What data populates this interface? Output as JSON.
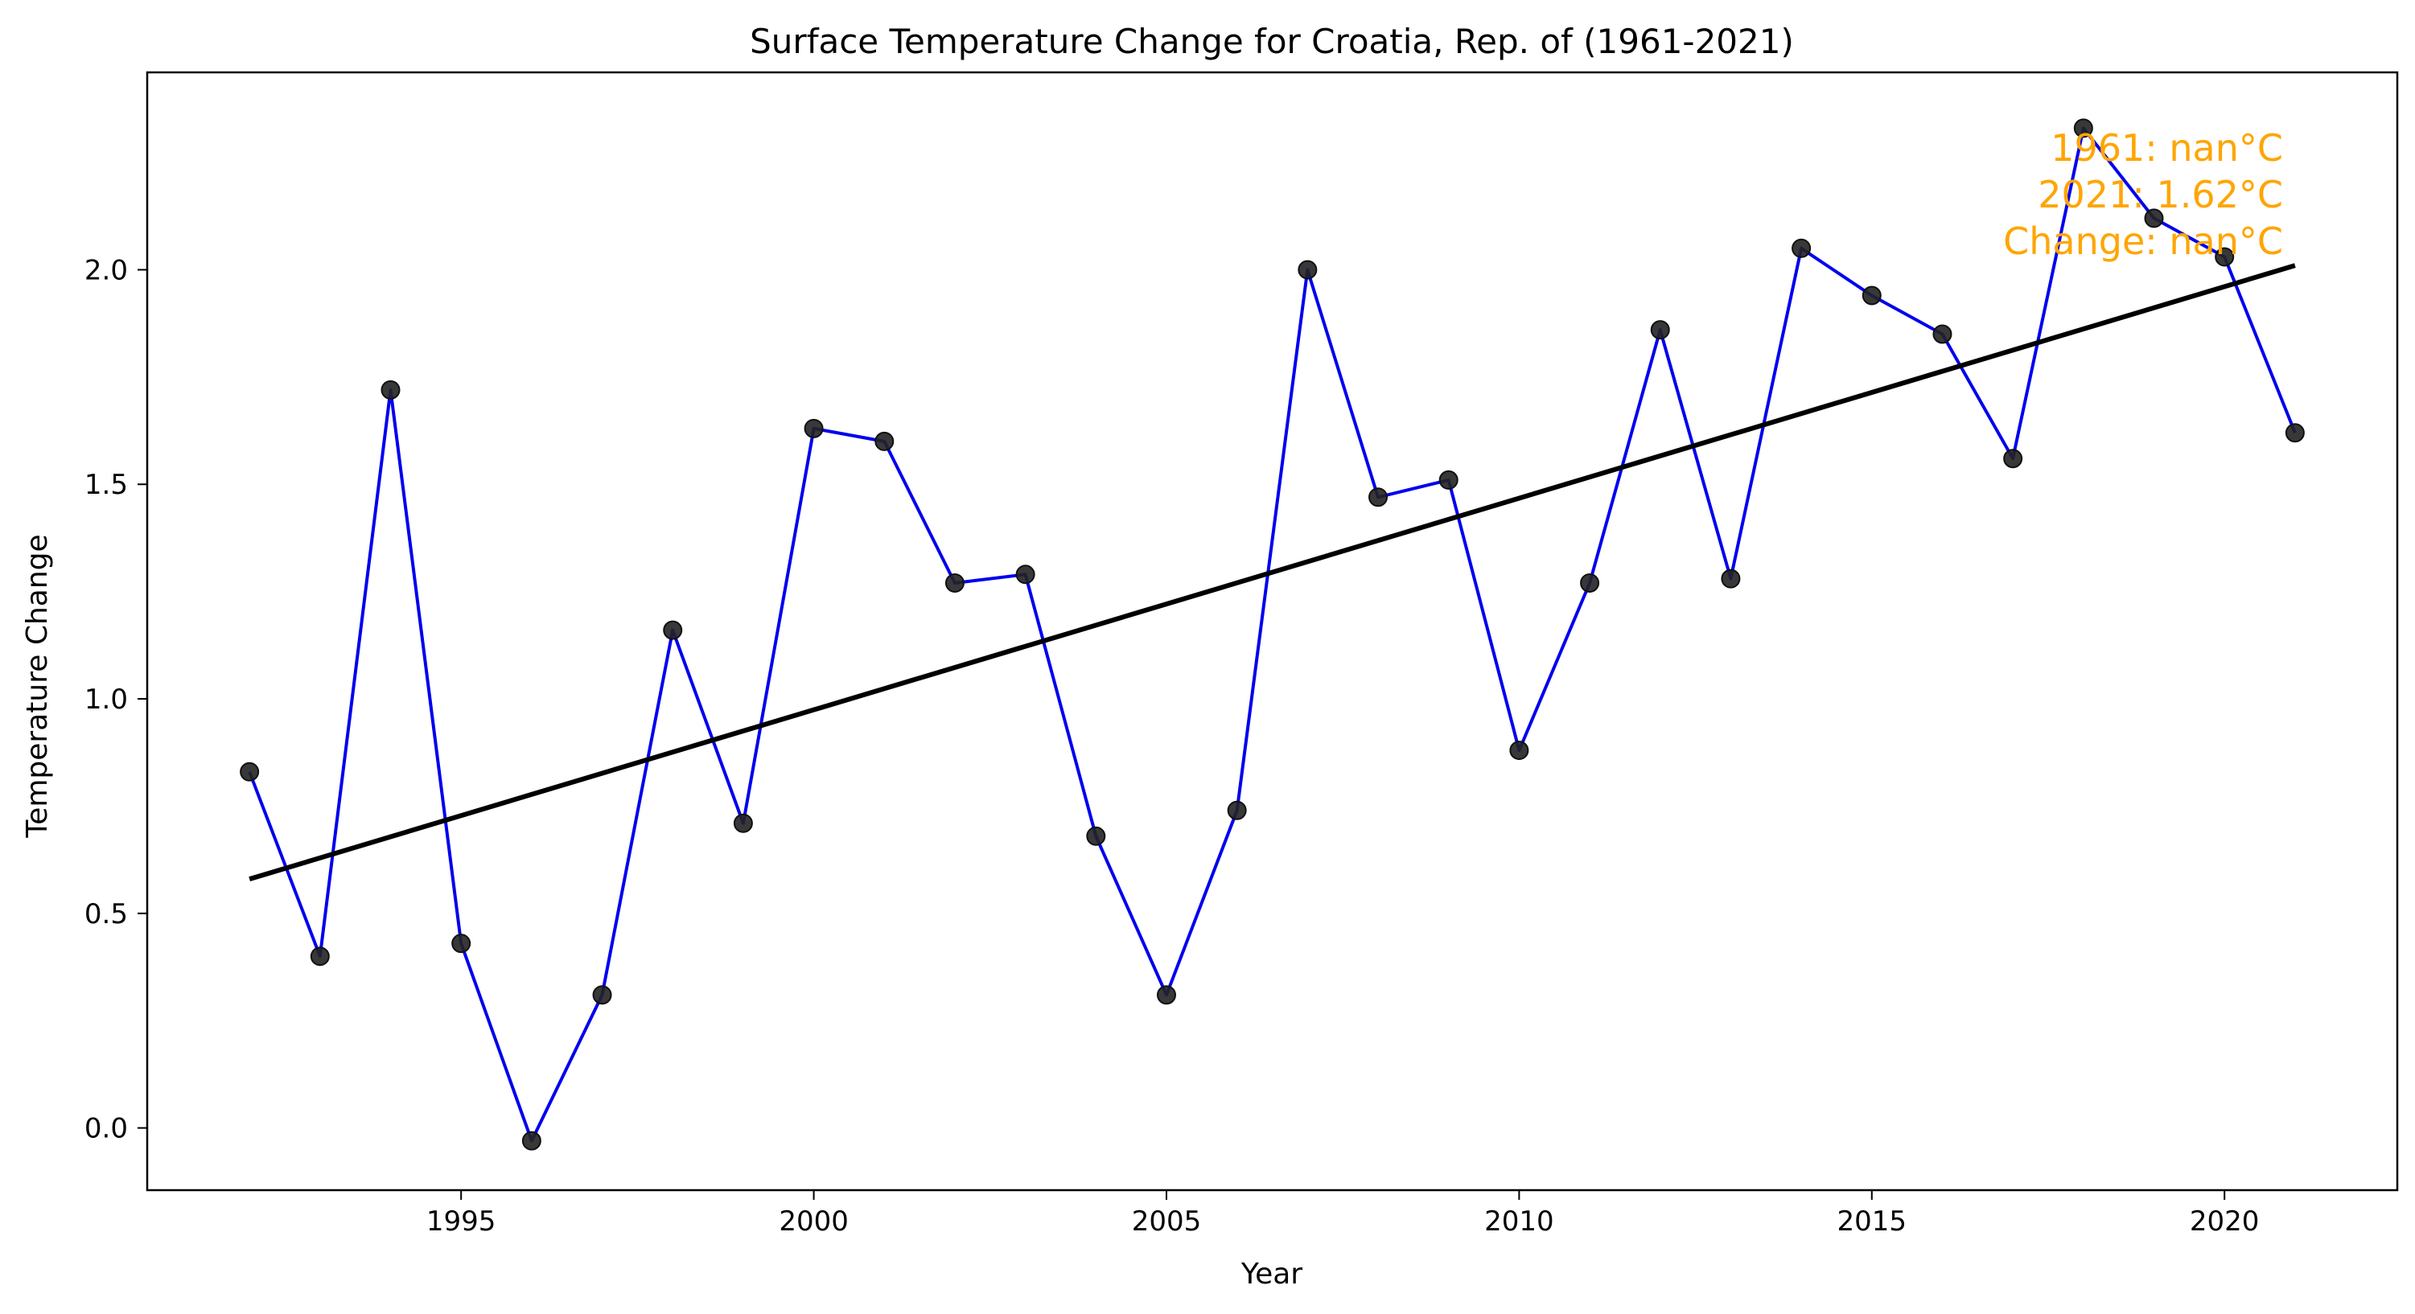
{
  "chart_data": {
    "type": "line",
    "title": "Surface Temperature Change for Croatia, Rep. of (1961-2021)",
    "xlabel": "Year",
    "ylabel": "Temperature Change",
    "xlim": [
      1990.55,
      2022.45
    ],
    "ylim": [
      -0.145,
      2.46
    ],
    "x_ticks": [
      1995,
      2000,
      2005,
      2010,
      2015,
      2020
    ],
    "x_tick_labels": [
      "1995",
      "2000",
      "2005",
      "2010",
      "2015",
      "2020"
    ],
    "y_ticks": [
      0.0,
      0.5,
      1.0,
      1.5,
      2.0
    ],
    "y_tick_labels": [
      "0.0",
      "0.5",
      "1.0",
      "1.5",
      "2.0"
    ],
    "grid": false,
    "series": [
      {
        "x": [
          1992,
          1993,
          1994,
          1995,
          1996,
          1997,
          1998,
          1999,
          2000,
          2001,
          2002,
          2003,
          2004,
          2005,
          2006,
          2007,
          2008,
          2009,
          2010,
          2011,
          2012,
          2013,
          2014,
          2015,
          2016,
          2017,
          2018,
          2019,
          2020,
          2021
        ],
        "values": [
          0.83,
          0.4,
          1.72,
          0.43,
          -0.03,
          0.31,
          1.16,
          0.71,
          1.63,
          1.6,
          1.27,
          1.29,
          0.68,
          0.31,
          0.74,
          2.0,
          1.47,
          1.51,
          0.88,
          1.27,
          1.86,
          1.28,
          2.05,
          1.94,
          1.85,
          1.56,
          2.33,
          2.12,
          2.03,
          1.62
        ],
        "line_color": "#0000ee",
        "marker_color": "#222222"
      }
    ],
    "trend": {
      "x": [
        1992,
        2021
      ],
      "values": [
        0.58,
        2.01
      ],
      "color": "#000000"
    },
    "annotation": {
      "lines": [
        "1961: nan°C",
        "2021: 1.62°C",
        "Change: nan°C"
      ],
      "color": "#ffa500"
    }
  }
}
